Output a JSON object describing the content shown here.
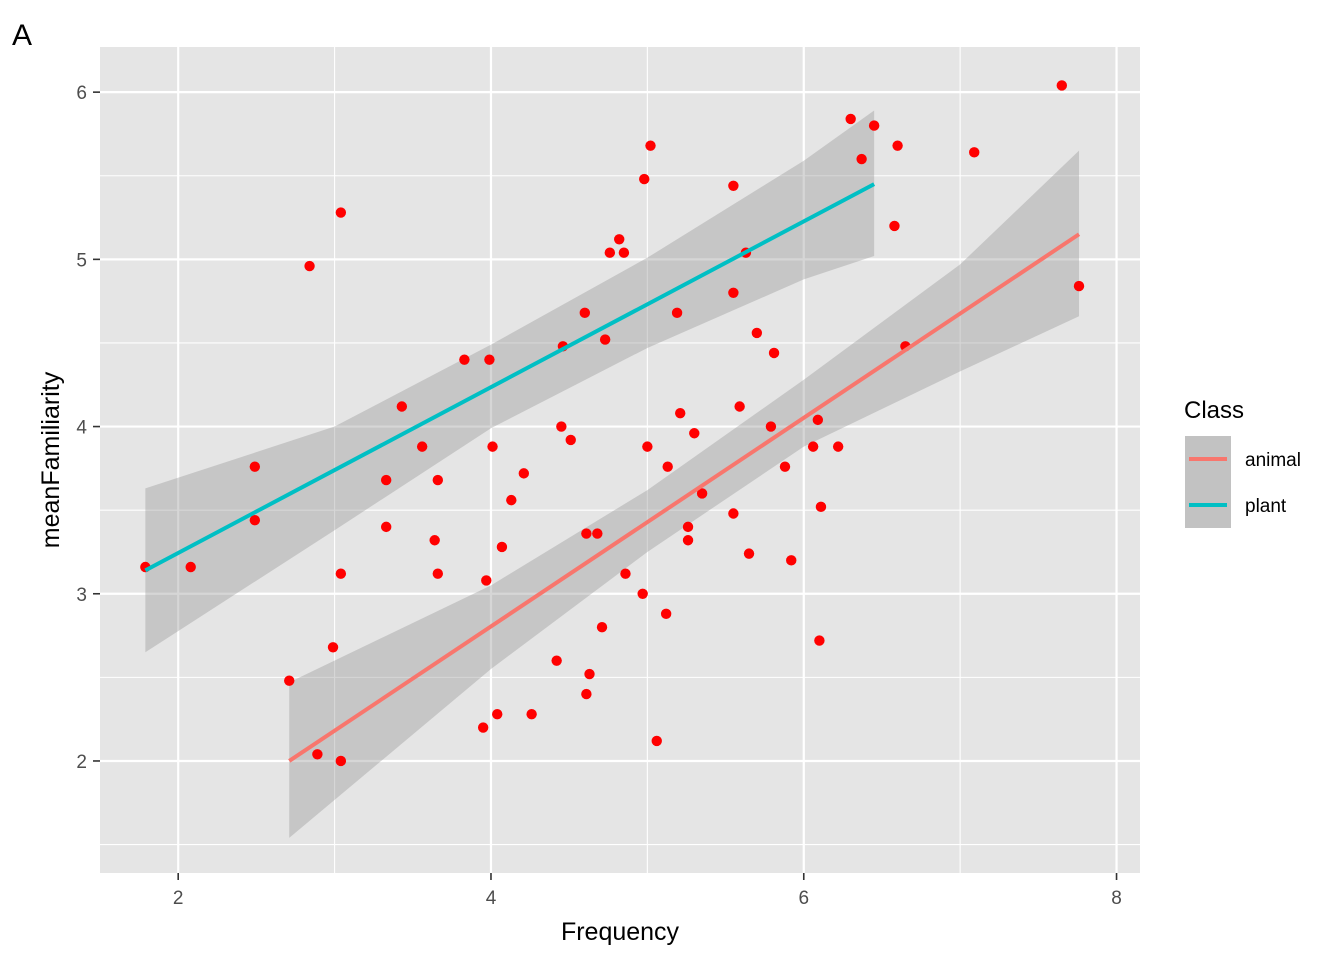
{
  "chart_data": {
    "type": "scatter",
    "panel_tag": "A",
    "xlabel": "Frequency",
    "ylabel": "meanFamiliarity",
    "xlim": [
      1.5,
      8.15
    ],
    "ylim": [
      1.33,
      6.27
    ],
    "x_ticks": [
      2,
      4,
      6,
      8
    ],
    "y_ticks": [
      2,
      3,
      4,
      5,
      6
    ],
    "grid": true,
    "legend": {
      "title": "Class",
      "position": "right",
      "entries": [
        "animal",
        "plant"
      ]
    },
    "point_color": "#ff0000",
    "points": [
      {
        "x": 1.79,
        "y": 3.16
      },
      {
        "x": 2.08,
        "y": 3.16
      },
      {
        "x": 2.49,
        "y": 3.76
      },
      {
        "x": 2.49,
        "y": 3.44
      },
      {
        "x": 2.71,
        "y": 2.48
      },
      {
        "x": 2.84,
        "y": 4.96
      },
      {
        "x": 2.89,
        "y": 2.04
      },
      {
        "x": 2.99,
        "y": 2.68
      },
      {
        "x": 3.04,
        "y": 5.28
      },
      {
        "x": 3.04,
        "y": 3.12
      },
      {
        "x": 3.04,
        "y": 2.0
      },
      {
        "x": 3.33,
        "y": 3.68
      },
      {
        "x": 3.33,
        "y": 3.4
      },
      {
        "x": 3.43,
        "y": 4.12
      },
      {
        "x": 3.56,
        "y": 3.88
      },
      {
        "x": 3.64,
        "y": 3.32
      },
      {
        "x": 3.66,
        "y": 3.68
      },
      {
        "x": 3.66,
        "y": 3.12
      },
      {
        "x": 3.83,
        "y": 4.4
      },
      {
        "x": 3.97,
        "y": 3.08
      },
      {
        "x": 3.95,
        "y": 2.2
      },
      {
        "x": 3.99,
        "y": 4.4
      },
      {
        "x": 4.01,
        "y": 3.88
      },
      {
        "x": 4.04,
        "y": 2.28
      },
      {
        "x": 4.07,
        "y": 3.28
      },
      {
        "x": 4.13,
        "y": 3.56
      },
      {
        "x": 4.21,
        "y": 3.72
      },
      {
        "x": 4.26,
        "y": 2.28
      },
      {
        "x": 4.42,
        "y": 2.6
      },
      {
        "x": 4.45,
        "y": 4.0
      },
      {
        "x": 4.46,
        "y": 4.48
      },
      {
        "x": 4.51,
        "y": 3.92
      },
      {
        "x": 4.6,
        "y": 4.68
      },
      {
        "x": 4.61,
        "y": 3.36
      },
      {
        "x": 4.61,
        "y": 2.4
      },
      {
        "x": 4.63,
        "y": 2.52
      },
      {
        "x": 4.68,
        "y": 3.36
      },
      {
        "x": 4.71,
        "y": 2.8
      },
      {
        "x": 4.73,
        "y": 4.52
      },
      {
        "x": 4.76,
        "y": 5.04
      },
      {
        "x": 4.82,
        "y": 5.12
      },
      {
        "x": 4.85,
        "y": 5.04
      },
      {
        "x": 4.86,
        "y": 3.12
      },
      {
        "x": 4.97,
        "y": 3.0
      },
      {
        "x": 4.98,
        "y": 5.48
      },
      {
        "x": 5.0,
        "y": 3.88
      },
      {
        "x": 5.02,
        "y": 5.68
      },
      {
        "x": 5.06,
        "y": 2.12
      },
      {
        "x": 5.12,
        "y": 2.88
      },
      {
        "x": 5.13,
        "y": 3.76
      },
      {
        "x": 5.19,
        "y": 4.68
      },
      {
        "x": 5.21,
        "y": 4.08
      },
      {
        "x": 5.26,
        "y": 3.4
      },
      {
        "x": 5.26,
        "y": 3.32
      },
      {
        "x": 5.3,
        "y": 3.96
      },
      {
        "x": 5.35,
        "y": 3.6
      },
      {
        "x": 5.55,
        "y": 5.44
      },
      {
        "x": 5.55,
        "y": 4.8
      },
      {
        "x": 5.55,
        "y": 3.48
      },
      {
        "x": 5.59,
        "y": 4.12
      },
      {
        "x": 5.63,
        "y": 5.04
      },
      {
        "x": 5.65,
        "y": 3.24
      },
      {
        "x": 5.7,
        "y": 4.56
      },
      {
        "x": 5.79,
        "y": 4.0
      },
      {
        "x": 5.81,
        "y": 4.44
      },
      {
        "x": 5.88,
        "y": 3.76
      },
      {
        "x": 5.92,
        "y": 3.2
      },
      {
        "x": 6.06,
        "y": 3.88
      },
      {
        "x": 6.09,
        "y": 4.04
      },
      {
        "x": 6.1,
        "y": 2.72
      },
      {
        "x": 6.11,
        "y": 3.52
      },
      {
        "x": 6.22,
        "y": 3.88
      },
      {
        "x": 6.3,
        "y": 5.84
      },
      {
        "x": 6.37,
        "y": 5.6
      },
      {
        "x": 6.45,
        "y": 5.8
      },
      {
        "x": 6.58,
        "y": 5.2
      },
      {
        "x": 6.6,
        "y": 5.68
      },
      {
        "x": 6.65,
        "y": 4.48
      },
      {
        "x": 7.09,
        "y": 5.64
      },
      {
        "x": 7.65,
        "y": 6.04
      },
      {
        "x": 7.76,
        "y": 4.84
      }
    ],
    "series": [
      {
        "name": "animal",
        "color": "#f8766d",
        "line": [
          {
            "x": 2.71,
            "y": 2.0
          },
          {
            "x": 7.76,
            "y": 5.15
          }
        ],
        "band": [
          {
            "x": 2.71,
            "lo": 1.54,
            "hi": 2.47
          },
          {
            "x": 4.0,
            "lo": 2.55,
            "hi": 3.05
          },
          {
            "x": 5.0,
            "lo": 3.25,
            "hi": 3.62
          },
          {
            "x": 6.0,
            "lo": 3.88,
            "hi": 4.28
          },
          {
            "x": 7.0,
            "lo": 4.33,
            "hi": 4.97
          },
          {
            "x": 7.76,
            "lo": 4.66,
            "hi": 5.65
          }
        ]
      },
      {
        "name": "plant",
        "color": "#00bfc4",
        "line": [
          {
            "x": 1.79,
            "y": 3.14
          },
          {
            "x": 6.45,
            "y": 5.45
          }
        ],
        "band": [
          {
            "x": 1.79,
            "lo": 2.65,
            "hi": 3.63
          },
          {
            "x": 3.0,
            "lo": 3.38,
            "hi": 4.0
          },
          {
            "x": 4.0,
            "lo": 3.99,
            "hi": 4.49
          },
          {
            "x": 5.0,
            "lo": 4.47,
            "hi": 5.01
          },
          {
            "x": 6.0,
            "lo": 4.88,
            "hi": 5.59
          },
          {
            "x": 6.45,
            "lo": 5.02,
            "hi": 5.89
          }
        ]
      }
    ]
  }
}
